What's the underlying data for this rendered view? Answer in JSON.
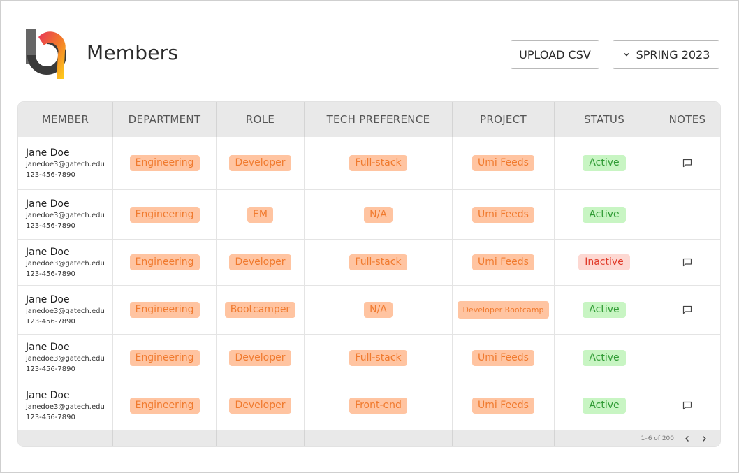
{
  "header": {
    "title": "Members",
    "upload_label": "UPLOAD CSV",
    "term_label": "SPRING 2023"
  },
  "table": {
    "columns": [
      "MEMBER",
      "DEPARTMENT",
      "ROLE",
      "TECH PREFERENCE",
      "PROJECT",
      "STATUS",
      "NOTES"
    ],
    "rows": [
      {
        "name": "Jane Doe",
        "email": "janedoe3@gatech.edu",
        "phone": "123-456-7890",
        "department": "Engineering",
        "role": "Developer",
        "tech": "Full-stack",
        "project": "Umi Feeds",
        "status": "Active",
        "has_note": true
      },
      {
        "name": "Jane Doe",
        "email": "janedoe3@gatech.edu",
        "phone": "123-456-7890",
        "department": "Engineering",
        "role": "EM",
        "tech": "N/A",
        "project": "Umi Feeds",
        "status": "Active",
        "has_note": false
      },
      {
        "name": "Jane Doe",
        "email": "janedoe3@gatech.edu",
        "phone": "123-456-7890",
        "department": "Engineering",
        "role": "Developer",
        "tech": "Full-stack",
        "project": "Umi Feeds",
        "status": "Inactive",
        "has_note": true
      },
      {
        "name": "Jane Doe",
        "email": "janedoe3@gatech.edu",
        "phone": "123-456-7890",
        "department": "Engineering",
        "role": "Bootcamper",
        "tech": "N/A",
        "project": "Developer Bootcamp",
        "status": "Active",
        "has_note": true
      },
      {
        "name": "Jane Doe",
        "email": "janedoe3@gatech.edu",
        "phone": "123-456-7890",
        "department": "Engineering",
        "role": "Developer",
        "tech": "Full-stack",
        "project": "Umi Feeds",
        "status": "Active",
        "has_note": false
      },
      {
        "name": "Jane Doe",
        "email": "janedoe3@gatech.edu",
        "phone": "123-456-7890",
        "department": "Engineering",
        "role": "Developer",
        "tech": "Front-end",
        "project": "Umi Feeds",
        "status": "Active",
        "has_note": true
      }
    ]
  },
  "pagination": {
    "range_text": "1–6 of 200"
  },
  "colors": {
    "tag_bg": "#ffc4a1",
    "tag_text": "#f07a2e",
    "active_bg": "#c8f5c3",
    "active_text": "#2f9b34",
    "inactive_bg": "#fdd8d2",
    "inactive_text": "#e03b2a",
    "header_bg": "#e9e9e9"
  },
  "icons": {
    "logo": "brand-logo",
    "term_dropdown": "chevron-down-icon",
    "note": "comment-icon",
    "prev": "chevron-left-icon",
    "next": "chevron-right-icon"
  }
}
